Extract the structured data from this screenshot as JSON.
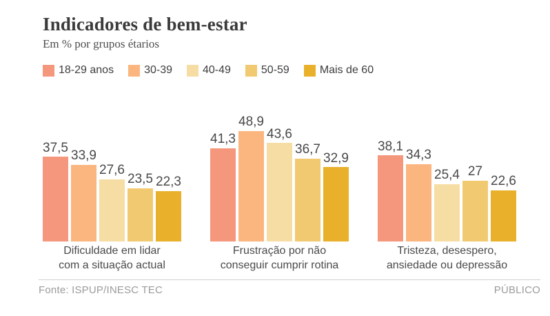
{
  "header": {
    "title": "Indicadores de bem-estar",
    "subtitle": "Em % por grupos étarios"
  },
  "chart_data": {
    "type": "bar",
    "title": "Indicadores de bem-estar",
    "subtitle": "Em % por grupos étarios",
    "unit": "%",
    "ylim": [
      0,
      50
    ],
    "grid": false,
    "legend_position": "top",
    "value_label_decimal_separator": ",",
    "categories": [
      "Dificuldade em lidar\ncom a situação actual",
      "Frustração por não\nconseguir cumprir rotina",
      "Tristeza, desespero,\nansiedade ou depressão"
    ],
    "series": [
      {
        "name": "18-29 anos",
        "color": "#F4977C",
        "values": [
          37.5,
          41.3,
          38.1
        ]
      },
      {
        "name": "30-39",
        "color": "#FBB680",
        "values": [
          33.9,
          48.9,
          34.3
        ]
      },
      {
        "name": "40-49",
        "color": "#F6DDA3",
        "values": [
          27.6,
          43.6,
          25.4
        ]
      },
      {
        "name": "50-59",
        "color": "#F1C971",
        "values": [
          23.5,
          36.7,
          27
        ]
      },
      {
        "name": "Mais de 60",
        "color": "#E9B02B",
        "values": [
          22.3,
          32.9,
          22.6
        ]
      }
    ]
  },
  "footer": {
    "source": "Fonte: ISPUP/INESC TEC",
    "brand": "PÚBLICO"
  }
}
